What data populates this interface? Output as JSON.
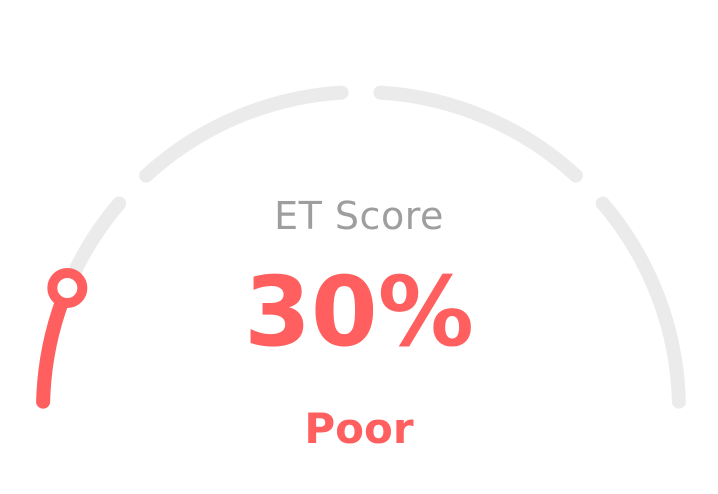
{
  "gauge": {
    "title": "ET Score",
    "value_text": "30%",
    "rating": "Poor",
    "value_fraction": 0.3,
    "accent_color": "#ff5f5f",
    "track_color": "#ebebeb",
    "segments": 4
  }
}
